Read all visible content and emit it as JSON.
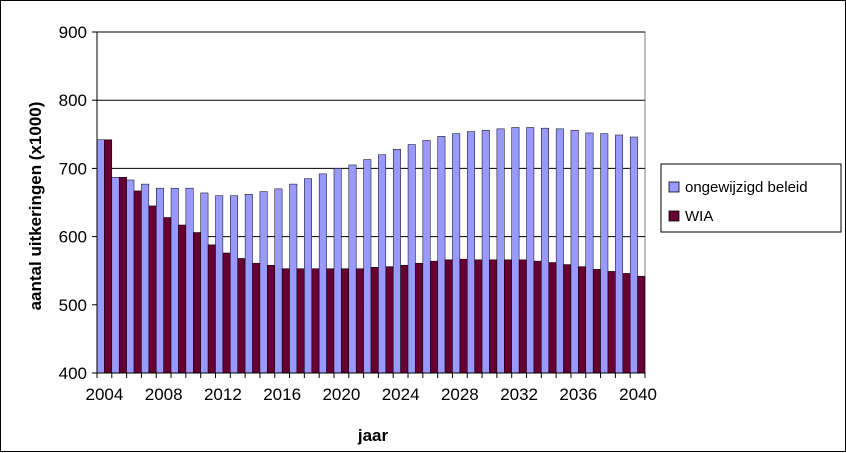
{
  "chart_data": {
    "type": "bar",
    "xlabel": "jaar",
    "ylabel": "aantal uitkeringen (x1000)",
    "ylim": [
      400,
      900
    ],
    "yticks": [
      400,
      500,
      600,
      700,
      800,
      900
    ],
    "xtick_labels": [
      "2004",
      "2008",
      "2012",
      "2016",
      "2020",
      "2024",
      "2028",
      "2032",
      "2036",
      "2040"
    ],
    "categories": [
      2004,
      2005,
      2006,
      2007,
      2008,
      2009,
      2010,
      2011,
      2012,
      2013,
      2014,
      2015,
      2016,
      2017,
      2018,
      2019,
      2020,
      2021,
      2022,
      2023,
      2024,
      2025,
      2026,
      2027,
      2028,
      2029,
      2030,
      2031,
      2032,
      2033,
      2034,
      2035,
      2036,
      2037,
      2038,
      2039,
      2040
    ],
    "grid": true,
    "legend_position": "right",
    "series": [
      {
        "name": "ongewijzigd beleid",
        "color": "#9999ff",
        "values": [
          742,
          687,
          683,
          677,
          671,
          671,
          671,
          664,
          660,
          660,
          662,
          666,
          670,
          677,
          685,
          692,
          700,
          705,
          713,
          720,
          728,
          735,
          741,
          747,
          751,
          754,
          756,
          758,
          760,
          760,
          759,
          758,
          756,
          752,
          751,
          749,
          746
        ]
      },
      {
        "name": "WIA",
        "color": "#660033",
        "values": [
          742,
          687,
          667,
          645,
          628,
          617,
          606,
          588,
          576,
          568,
          561,
          558,
          553,
          553,
          553,
          553,
          553,
          553,
          555,
          556,
          558,
          561,
          564,
          566,
          567,
          566,
          566,
          566,
          566,
          564,
          562,
          559,
          556,
          552,
          549,
          546,
          542
        ]
      }
    ]
  }
}
